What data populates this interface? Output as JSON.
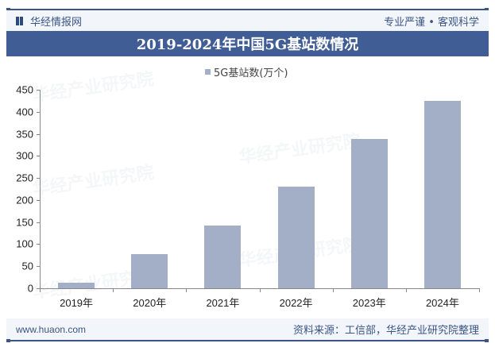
{
  "header": {
    "brand": "华经情报网",
    "slogan": "专业严谨 • 客观科学"
  },
  "title": "2019-2024年中国5G基站数情况",
  "legend": {
    "label": "5G基站数(万个)",
    "color": "#a3afc6"
  },
  "footer": {
    "site": "www.huaon.com",
    "source": "资料来源：工信部，华经产业研究院整理"
  },
  "watermark": "华经产业研究院",
  "chart_data": {
    "type": "bar",
    "title": "2019-2024年中国5G基站数情况",
    "categories": [
      "2019年",
      "2020年",
      "2021年",
      "2022年",
      "2023年",
      "2024年"
    ],
    "series": [
      {
        "name": "5G基站数(万个)",
        "values": [
          13,
          77,
          142.5,
          231.2,
          337.7,
          425.1
        ],
        "color": "#a3afc6"
      }
    ],
    "xlabel": "",
    "ylabel": "",
    "ylim": [
      0,
      450
    ],
    "yticks": [
      0,
      50,
      100,
      150,
      200,
      250,
      300,
      350,
      400,
      450
    ],
    "grid": false,
    "legend_position": "top"
  }
}
